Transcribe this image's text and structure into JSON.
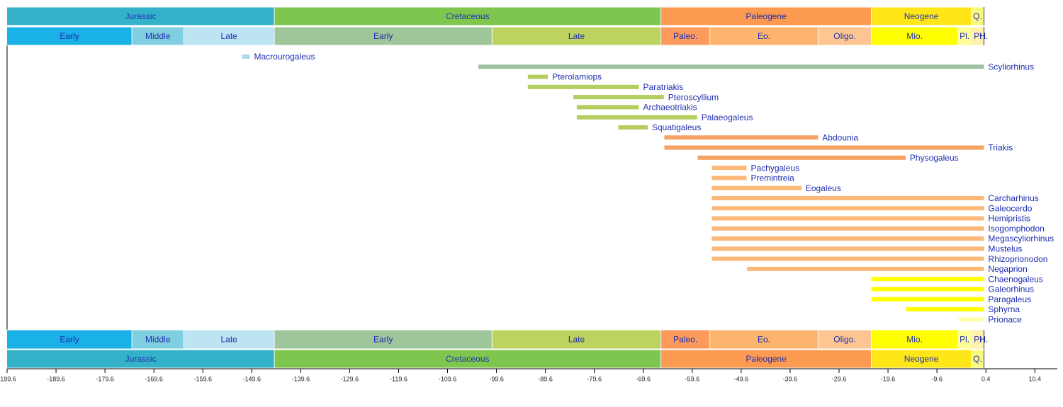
{
  "chart_data": {
    "type": "timeline",
    "xlim": [
      -199.6,
      15
    ],
    "xticks": [
      -199.6,
      -189.6,
      -179.6,
      -169.6,
      -159.6,
      -149.6,
      -139.6,
      -129.6,
      -119.6,
      -109.6,
      -99.6,
      -89.6,
      -79.6,
      -69.6,
      -59.6,
      -49.6,
      -39.6,
      -29.6,
      -19.6,
      -9.6,
      0.4,
      10.4
    ],
    "periods": [
      {
        "name": "Jurassic",
        "start": -201.3,
        "end": -145,
        "color": "#34b2c9"
      },
      {
        "name": "Cretaceous",
        "start": -145,
        "end": -66,
        "color": "#7fc64e"
      },
      {
        "name": "Paleogene",
        "start": -66,
        "end": -23,
        "color": "#fd9a52"
      },
      {
        "name": "Neogene",
        "start": -23,
        "end": -2.58,
        "color": "#ffe619"
      },
      {
        "name": "Q.",
        "start": -2.58,
        "end": 0,
        "color": "#f9f97f"
      }
    ],
    "epochs": [
      {
        "name": "Early",
        "start": -201.3,
        "end": -174.1,
        "color": "#1ab1e6"
      },
      {
        "name": "Middle",
        "start": -174.1,
        "end": -163.5,
        "color": "#80cfe0"
      },
      {
        "name": "Late",
        "start": -163.5,
        "end": -145,
        "color": "#bde4f3"
      },
      {
        "name": "Early",
        "start": -145,
        "end": -100.5,
        "color": "#9fc59b"
      },
      {
        "name": "Late",
        "start": -100.5,
        "end": -66,
        "color": "#bdd35f"
      },
      {
        "name": "Paleo.",
        "start": -66,
        "end": -56,
        "color": "#fd9a5c"
      },
      {
        "name": "Eo.",
        "start": -56,
        "end": -33.9,
        "color": "#fdb46c"
      },
      {
        "name": "Oligo.",
        "start": -33.9,
        "end": -23,
        "color": "#fdc591"
      },
      {
        "name": "Mio.",
        "start": -23,
        "end": -5.33,
        "color": "#ffff00"
      },
      {
        "name": "Pl.",
        "start": -5.33,
        "end": -2.58,
        "color": "#ffff99"
      },
      {
        "name": "Pl",
        "start": -2.58,
        "end": -0.0117,
        "color": "#fff2ae"
      },
      {
        "name": "H.",
        "start": -0.0117,
        "end": 0,
        "color": "#fef2e0"
      }
    ],
    "taxa": [
      {
        "name": "Macrourogaleus",
        "start": -151.6,
        "end": -150.0,
        "color": "#a9d9f0"
      },
      {
        "name": "Scyliorhinus",
        "start": -103.3,
        "end": 0,
        "color": "#9cc3a0"
      },
      {
        "name": "Pterolamiops",
        "start": -93.2,
        "end": -89.1,
        "color": "#b5cc5e"
      },
      {
        "name": "Paratriakis",
        "start": -93.2,
        "end": -70.5,
        "color": "#b5cc5e"
      },
      {
        "name": "Pteroscyllium",
        "start": -83.9,
        "end": -65.4,
        "color": "#b5cc5e"
      },
      {
        "name": "Archaeotriakis",
        "start": -83.2,
        "end": -70.5,
        "color": "#b5cc5e"
      },
      {
        "name": "Palaeogaleus",
        "start": -83.2,
        "end": -58.6,
        "color": "#b5cc5e"
      },
      {
        "name": "Squatigaleus",
        "start": -74.7,
        "end": -68.7,
        "color": "#b5cc5e"
      },
      {
        "name": "Abdounia",
        "start": -65.3,
        "end": -33.9,
        "color": "#f7a263"
      },
      {
        "name": "Triakis",
        "start": -65.3,
        "end": 0,
        "color": "#f7a263"
      },
      {
        "name": "Physogaleus",
        "start": -58.5,
        "end": -16.0,
        "color": "#f7a263"
      },
      {
        "name": "Pachygaleus",
        "start": -55.6,
        "end": -48.5,
        "color": "#fbb878"
      },
      {
        "name": "Premintreia",
        "start": -55.6,
        "end": -48.5,
        "color": "#fbb878"
      },
      {
        "name": "Eogaleus",
        "start": -55.6,
        "end": -37.3,
        "color": "#fbb878"
      },
      {
        "name": "Carcharhinus",
        "start": -55.6,
        "end": 0,
        "color": "#fbb878"
      },
      {
        "name": "Galeocerdo",
        "start": -55.6,
        "end": 0,
        "color": "#fbb878"
      },
      {
        "name": "Hemipristis",
        "start": -55.6,
        "end": 0,
        "color": "#fbb878"
      },
      {
        "name": "Isogomphodon",
        "start": -55.6,
        "end": 0,
        "color": "#fbb878"
      },
      {
        "name": "Megascyliorhinus",
        "start": -55.6,
        "end": 0,
        "color": "#fbb878"
      },
      {
        "name": "Mustelus",
        "start": -55.6,
        "end": 0,
        "color": "#fbb878"
      },
      {
        "name": "Rhizoprionodon",
        "start": -55.6,
        "end": 0,
        "color": "#fbb878"
      },
      {
        "name": "Negaprion",
        "start": -48.4,
        "end": 0,
        "color": "#fbb878"
      },
      {
        "name": "Chaenogaleus",
        "start": -23,
        "end": 0,
        "color": "#ffff00"
      },
      {
        "name": "Galeorhinus",
        "start": -23,
        "end": 0,
        "color": "#ffff00"
      },
      {
        "name": "Paragaleus",
        "start": -23,
        "end": 0,
        "color": "#ffff00"
      },
      {
        "name": "Sphyrna",
        "start": -15.9,
        "end": 0,
        "color": "#ffff00"
      },
      {
        "name": "Prionace",
        "start": -5.2,
        "end": 0,
        "color": "#ffffaa"
      }
    ]
  }
}
